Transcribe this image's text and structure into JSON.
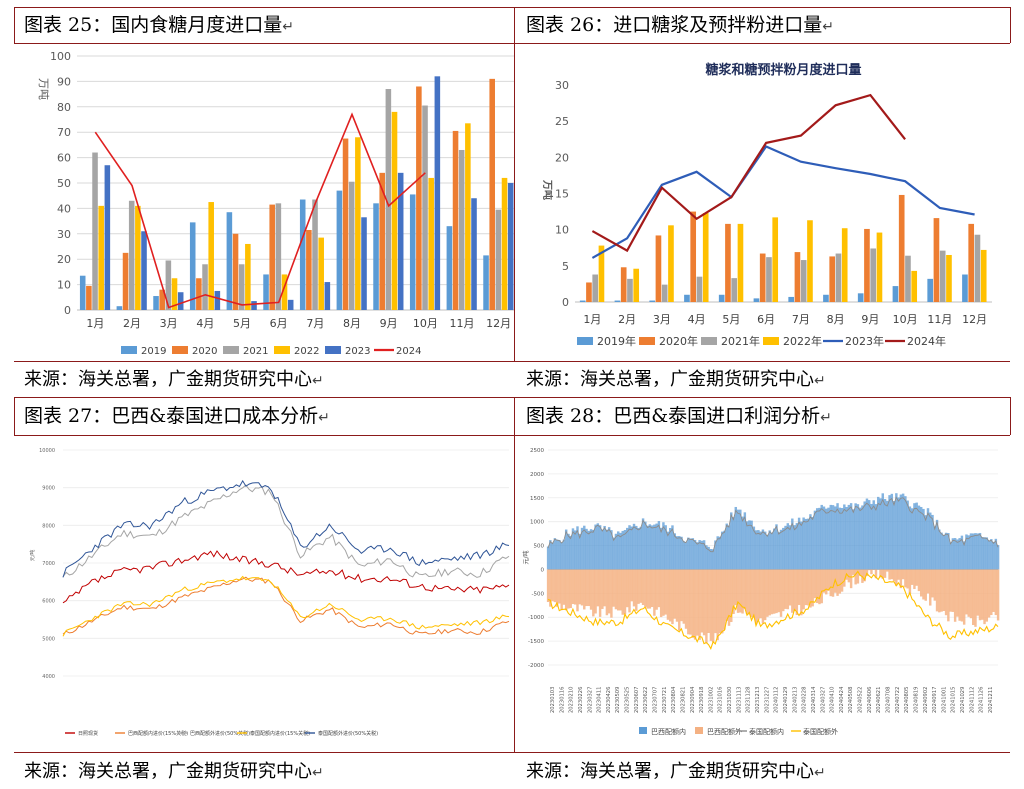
{
  "panels": {
    "p25": {
      "title": "图表 25：国内食糖月度进口量",
      "source": "来源：海关总署，广金期货研究中心"
    },
    "p26": {
      "title": "图表 26：进口糖浆及预拌粉进口量",
      "source": "来源：海关总署，广金期货研究中心"
    },
    "p27": {
      "title": "图表 27：巴西&泰国进口成本分析",
      "source": "来源：海关总署，广金期货研究中心"
    },
    "p28": {
      "title": "图表 28：巴西&泰国进口利润分析",
      "source": "来源：海关总署，广金期货研究中心"
    }
  },
  "return_mark": "↵",
  "colors": {
    "frame": "#8b1a1a"
  },
  "chart_data": [
    {
      "id": "c25",
      "type": "bar",
      "title": "",
      "ylabel": "万吨",
      "ylim": [
        0,
        100
      ],
      "yticks": [
        0,
        10,
        20,
        30,
        40,
        50,
        60,
        70,
        80,
        90,
        100
      ],
      "categories": [
        "1月",
        "2月",
        "3月",
        "4月",
        "5月",
        "6月",
        "7月",
        "8月",
        "9月",
        "10月",
        "11月",
        "12月"
      ],
      "series": [
        {
          "name": "2019",
          "color": "#5b9bd5",
          "values": [
            13.5,
            1.5,
            5.5,
            34.5,
            38.5,
            14,
            43.5,
            47,
            42,
            45.5,
            33,
            21.5
          ]
        },
        {
          "name": "2020",
          "color": "#ed7d31",
          "values": [
            9.5,
            22.5,
            8,
            12.5,
            30,
            41.5,
            31.5,
            67.5,
            54,
            88,
            70.5,
            91
          ]
        },
        {
          "name": "2021",
          "color": "#a5a5a5",
          "values": [
            62,
            43,
            19.5,
            18,
            18,
            42,
            43.5,
            50.5,
            87,
            80.5,
            63,
            39.5
          ]
        },
        {
          "name": "2022",
          "color": "#ffc000",
          "values": [
            41,
            41,
            12.5,
            42.5,
            26,
            14,
            28.5,
            68,
            78,
            52,
            73.5,
            52
          ]
        },
        {
          "name": "2023",
          "color": "#4472c4",
          "values": [
            57,
            31,
            7,
            7.5,
            3.5,
            4,
            11,
            36.5,
            54,
            92,
            44,
            50
          ]
        }
      ],
      "line": {
        "name": "2024",
        "color": "#e02020",
        "values": [
          70,
          49,
          1,
          6,
          2,
          3,
          42,
          77,
          41,
          54
        ]
      }
    },
    {
      "id": "c26",
      "type": "bar",
      "title": "糖浆和糖预拌粉月度进口量",
      "ylabel": "万吨",
      "ylim": [
        0,
        30
      ],
      "yticks": [
        0,
        5,
        10,
        15,
        20,
        25,
        30
      ],
      "categories": [
        "1月",
        "2月",
        "3月",
        "4月",
        "5月",
        "6月",
        "7月",
        "8月",
        "9月",
        "10月",
        "11月",
        "12月"
      ],
      "series": [
        {
          "name": "2019年",
          "color": "#5b9bd5",
          "values": [
            0.2,
            0.2,
            0.2,
            1,
            1,
            0.5,
            0.7,
            1,
            1.2,
            2.2,
            3.2,
            3.8
          ]
        },
        {
          "name": "2020年",
          "color": "#ed7d31",
          "values": [
            2.7,
            4.8,
            9.2,
            12.5,
            10.8,
            6.7,
            6.9,
            6.3,
            10.1,
            14.8,
            11.6,
            10.8
          ]
        },
        {
          "name": "2021年",
          "color": "#a5a5a5",
          "values": [
            3.8,
            3.2,
            2.4,
            3.5,
            3.3,
            6.2,
            5.8,
            6.7,
            7.4,
            6.4,
            7.1,
            9.3
          ]
        },
        {
          "name": "2022年",
          "color": "#ffc000",
          "values": [
            7.8,
            4.6,
            10.6,
            12.3,
            10.8,
            11.7,
            11.3,
            10.2,
            9.6,
            4.3,
            6.5,
            7.2
          ]
        }
      ],
      "lines": [
        {
          "name": "2023年",
          "color": "#2e5db8",
          "values": [
            6.1,
            8.8,
            16.2,
            18,
            14.5,
            21.5,
            19.4,
            18.5,
            17.7,
            16.7,
            13,
            12.1
          ]
        },
        {
          "name": "2024年",
          "color": "#a31a1a",
          "values": [
            9.8,
            7.1,
            15.8,
            11.5,
            14.5,
            22,
            23,
            27.2,
            28.6,
            22.5
          ]
        }
      ]
    },
    {
      "id": "c27",
      "type": "line",
      "title": "",
      "ylabel": "元/吨",
      "ylim": [
        4000,
        10000
      ],
      "yticks": [
        4000,
        5000,
        6000,
        7000,
        8000,
        9000,
        10000
      ],
      "legend": [
        "日照现货",
        "巴西配额内进价(15%关税)",
        "巴西配额外进价(50%关税)",
        "泰国配额内进价(15%关税)",
        "泰国配额外进价(50%关税)"
      ],
      "series_colors": [
        "#c00000",
        "#ed7d31",
        "#a5a5a5",
        "#ffc000",
        "#2f5597"
      ]
    },
    {
      "id": "c28",
      "type": "area",
      "title": "",
      "ylabel": "元/吨",
      "ylim": [
        -2000,
        2500
      ],
      "yticks": [
        -2000,
        -1500,
        -1000,
        -500,
        0,
        500,
        1000,
        1500,
        2000,
        2500
      ],
      "legend": [
        "巴西配额内",
        "巴西配额外",
        "泰国配额内",
        "泰国配额外"
      ],
      "series_colors": [
        "#5b9bd5",
        "#f4b183",
        "#8c8c8c",
        "#ffc000"
      ],
      "xtick_labels": [
        "20230103",
        "20230116",
        "20230210",
        "20230226",
        "20230327",
        "20230411",
        "20230426",
        "20230509",
        "20230525",
        "20230607",
        "20230622",
        "20230707",
        "20230721",
        "20230804",
        "20230821",
        "20230904",
        "20230918",
        "20231002",
        "20231016",
        "20231030",
        "20231113",
        "20231128",
        "20231213",
        "20231227",
        "20240112",
        "20240129",
        "20240213",
        "20240228",
        "20240314",
        "20240327",
        "20240410",
        "20240424",
        "20240508",
        "20240522",
        "20240606",
        "20240621",
        "20240708",
        "20240722",
        "20240805",
        "20240819",
        "20240902",
        "20240917",
        "20241001",
        "20241015",
        "20241029",
        "20241112",
        "20241126",
        "20241211"
      ]
    }
  ]
}
